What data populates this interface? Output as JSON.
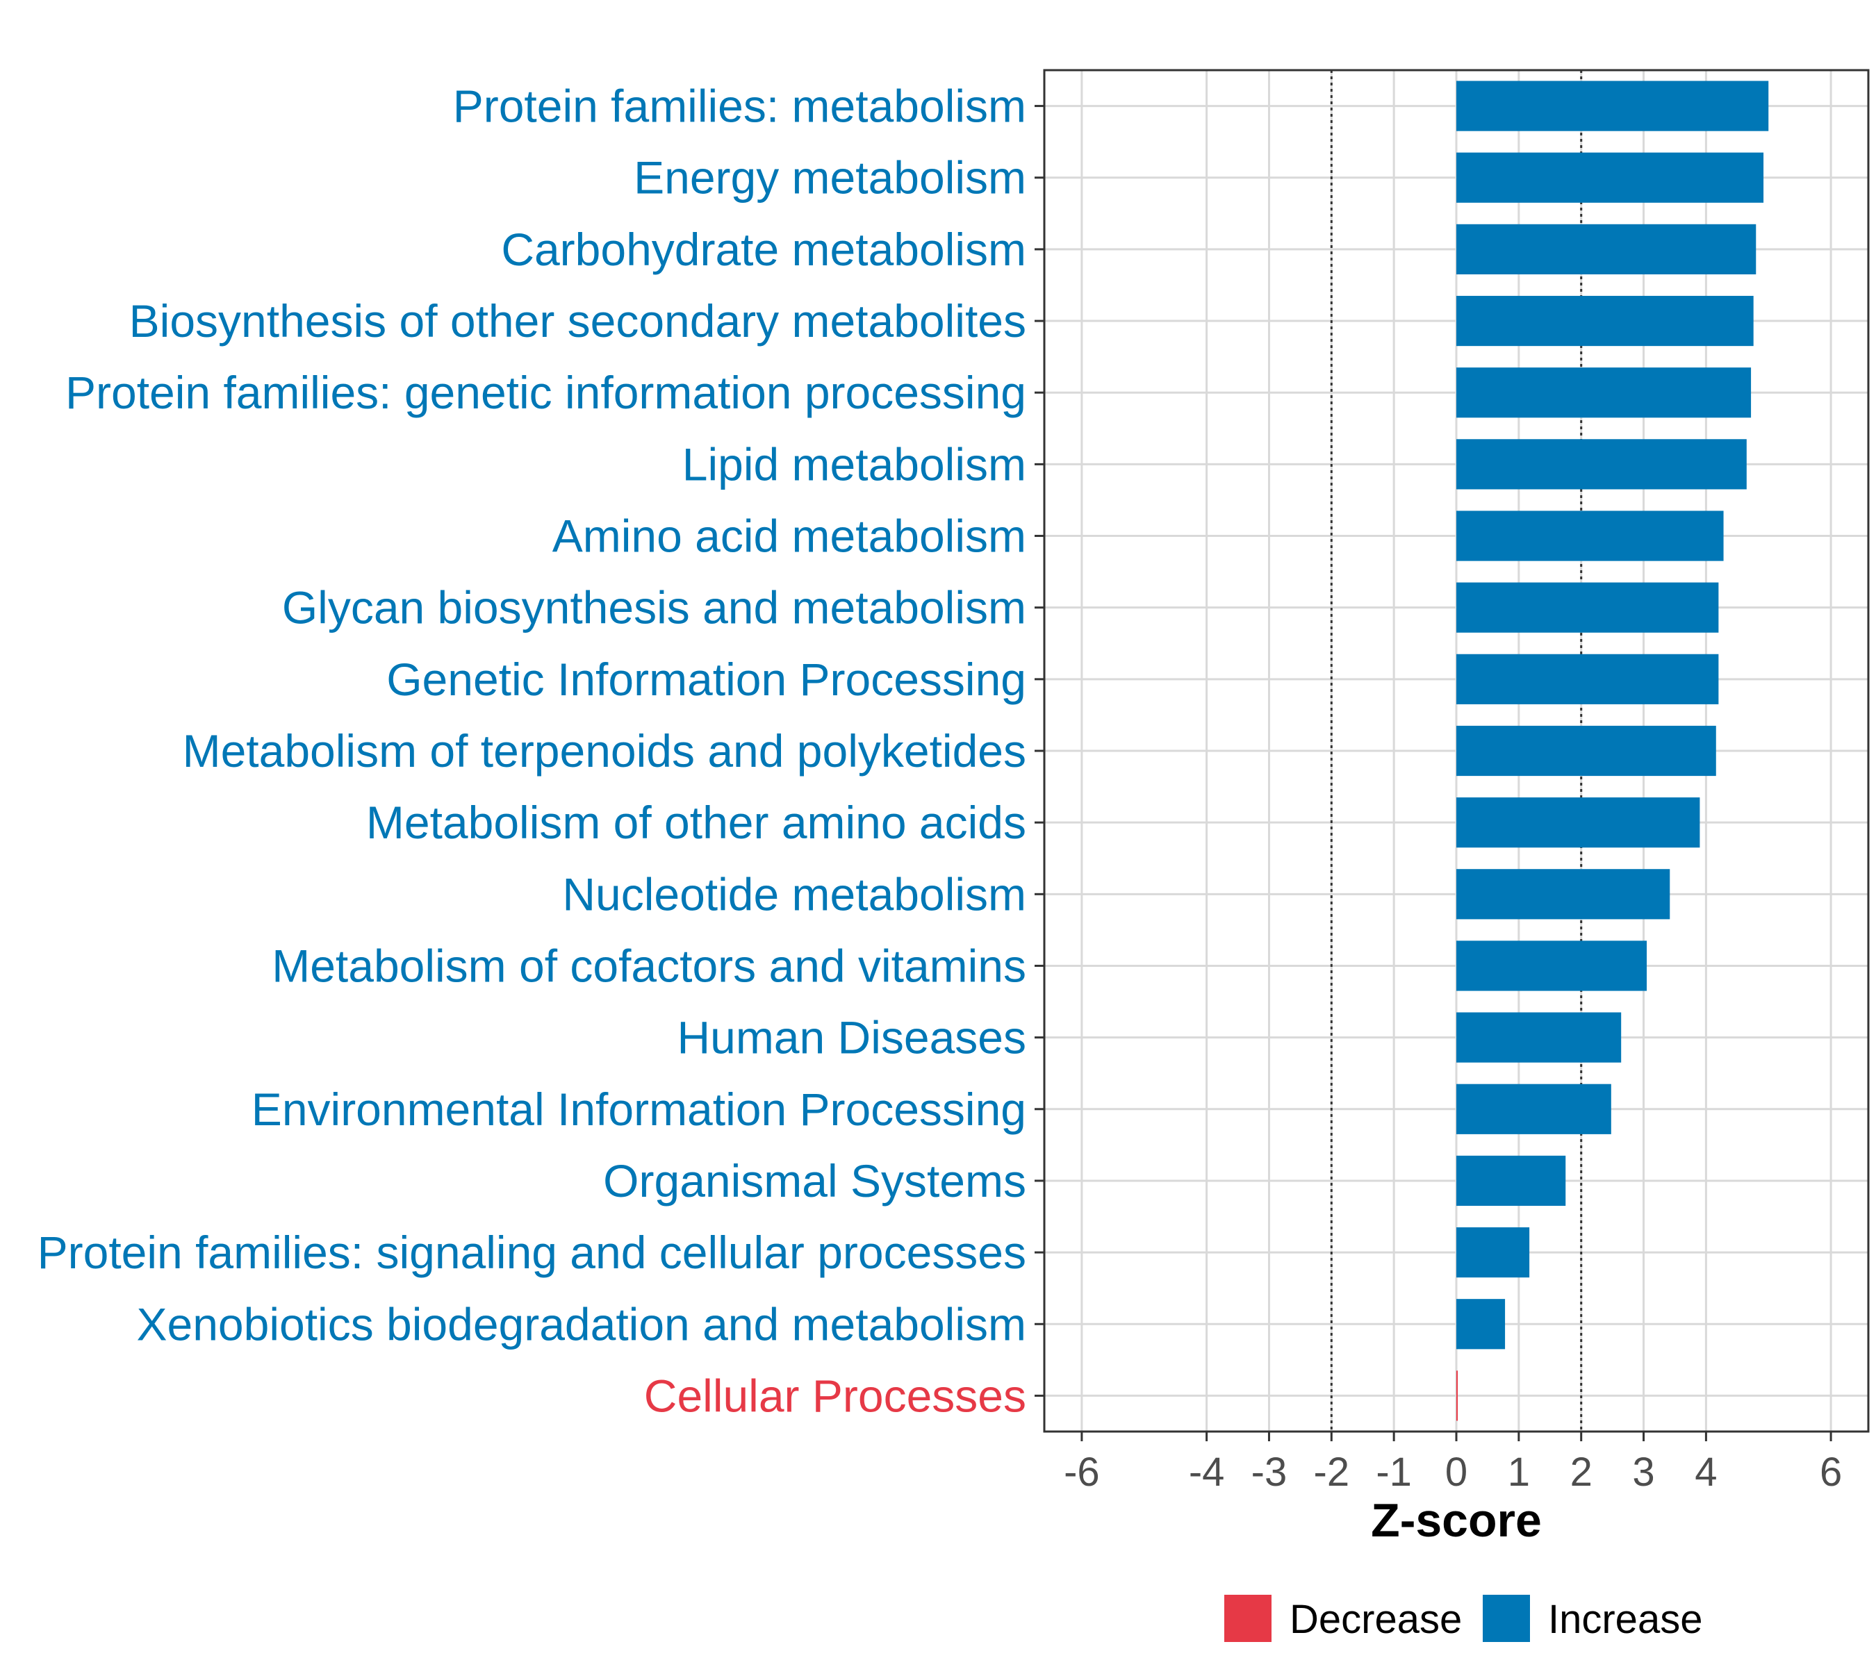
{
  "chart_data": {
    "type": "bar",
    "orientation": "horizontal",
    "title": "",
    "xlabel": "Z-score",
    "ylabel": "",
    "xlim": [
      -6.6,
      6.6
    ],
    "x_ticks": [
      -6,
      -4,
      -3,
      -2,
      -1,
      0,
      1,
      2,
      3,
      4,
      6
    ],
    "reference_lines": [
      -2,
      2
    ],
    "grid": true,
    "colors": {
      "Decrease": "#e63946",
      "Increase": "#0077b6"
    },
    "categories": [
      "Protein families: metabolism",
      "Energy metabolism",
      "Carbohydrate metabolism",
      "Biosynthesis of other secondary metabolites",
      "Protein families: genetic information processing",
      "Lipid metabolism",
      "Amino acid metabolism",
      "Glycan biosynthesis and metabolism",
      "Genetic Information Processing",
      "Metabolism of terpenoids and polyketides",
      "Metabolism of other amino acids",
      "Nucleotide metabolism",
      "Metabolism of cofactors and vitamins",
      "Human Diseases",
      "Environmental Information Processing",
      "Organismal Systems",
      "Protein families: signaling and cellular processes",
      "Xenobiotics biodegradation and metabolism",
      "Cellular Processes"
    ],
    "values": [
      5.0,
      4.92,
      4.8,
      4.76,
      4.72,
      4.65,
      4.28,
      4.2,
      4.2,
      4.16,
      3.9,
      3.42,
      3.05,
      2.64,
      2.48,
      1.75,
      1.17,
      0.78,
      0.02
    ],
    "direction": [
      "Increase",
      "Increase",
      "Increase",
      "Increase",
      "Increase",
      "Increase",
      "Increase",
      "Increase",
      "Increase",
      "Increase",
      "Increase",
      "Increase",
      "Increase",
      "Increase",
      "Increase",
      "Increase",
      "Increase",
      "Increase",
      "Decrease"
    ],
    "legend": {
      "position": "bottom",
      "entries": [
        "Decrease",
        "Increase"
      ]
    }
  }
}
